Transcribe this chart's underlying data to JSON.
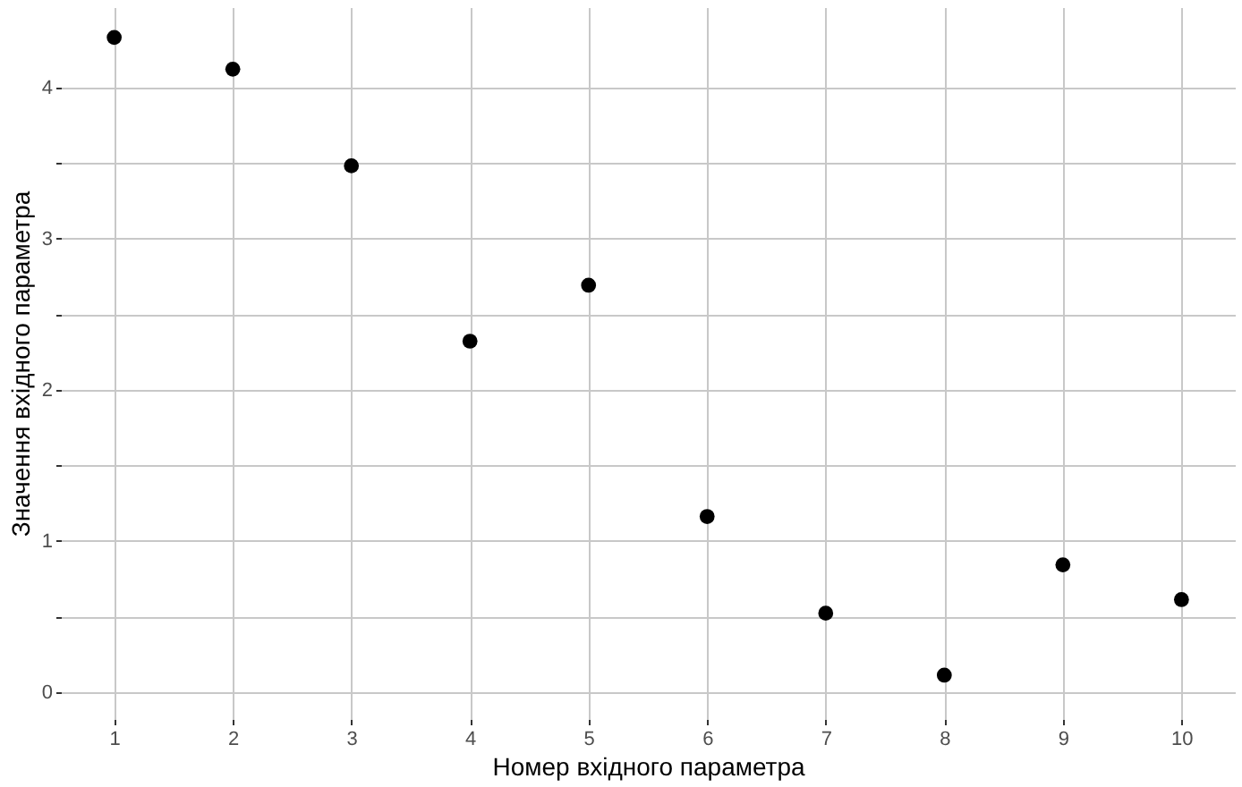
{
  "chart_data": {
    "type": "scatter",
    "xlabel": "Номер вхідного параметра",
    "ylabel": "Значення вхідного параметра",
    "x": [
      1,
      2,
      3,
      4,
      5,
      6,
      7,
      8,
      9,
      10
    ],
    "series": [
      {
        "color": "#000000",
        "values": [
          4.33,
          4.12,
          3.48,
          2.32,
          2.69,
          1.16,
          0.52,
          0.11,
          0.84,
          0.61
        ]
      }
    ],
    "xlim": [
      0.55,
      10.45
    ],
    "xticks": [
      1,
      2,
      3,
      4,
      5,
      6,
      7,
      8,
      9,
      10
    ],
    "ylim": [
      -0.18,
      4.53
    ],
    "yticks": [
      0,
      {
        "value": 0.5,
        "label": null
      },
      1,
      {
        "value": 1.5,
        "label": null
      },
      2,
      {
        "value": 2.5,
        "label": null
      },
      3,
      {
        "value": 3.5,
        "label": null
      },
      4
    ],
    "grid": true,
    "marker": "circle",
    "legend": false
  }
}
